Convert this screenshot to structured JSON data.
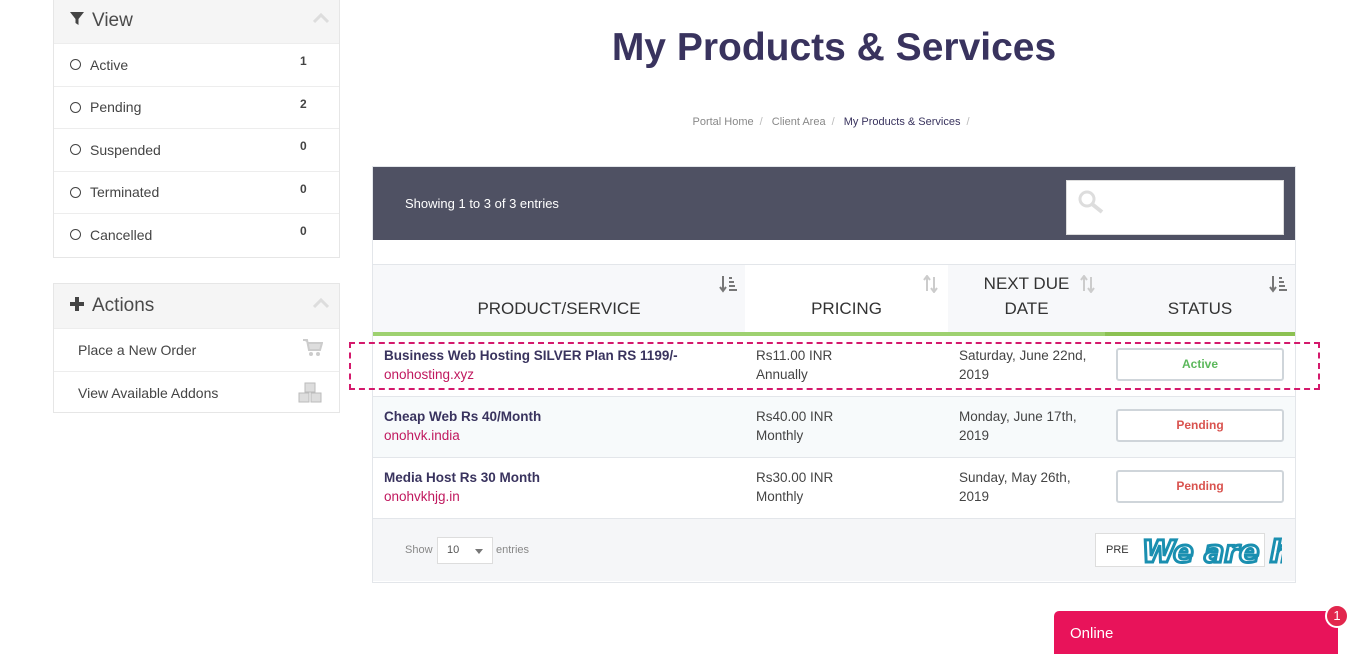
{
  "sidebar": {
    "view": {
      "title": "View",
      "items": [
        {
          "label": "Active",
          "count": "1"
        },
        {
          "label": "Pending",
          "count": "2"
        },
        {
          "label": "Suspended",
          "count": "0"
        },
        {
          "label": "Terminated",
          "count": "0"
        },
        {
          "label": "Cancelled",
          "count": "0"
        }
      ]
    },
    "actions": {
      "title": "Actions",
      "items": [
        {
          "label": "Place a New Order",
          "icon": "cart-icon"
        },
        {
          "label": "View Available Addons",
          "icon": "cubes-icon"
        }
      ]
    }
  },
  "page": {
    "title": "My Products & Services",
    "breadcrumb": [
      "Portal Home",
      "Client Area",
      "My Products & Services"
    ]
  },
  "table": {
    "showing": "Showing 1 to 3 of 3 entries",
    "headers": [
      "PRODUCT/SERVICE",
      "PRICING",
      "NEXT DUE DATE",
      "STATUS"
    ],
    "rows": [
      {
        "product": "Business Web Hosting SILVER Plan RS 1199/-",
        "domain": "onohosting.xyz",
        "price": "Rs11.00 INR",
        "cycle": "Annually",
        "due_line1": "Saturday, June 22nd,",
        "due_line2": "2019",
        "status": "Active"
      },
      {
        "product": "Cheap Web Rs 40/Month",
        "domain": "onohvk.india",
        "price": "Rs40.00 INR",
        "cycle": "Monthly",
        "due_line1": "Monday, June 17th,",
        "due_line2": "2019",
        "status": "Pending"
      },
      {
        "product": "Media Host Rs 30 Month",
        "domain": "onohvkhjg.in",
        "price": "Rs30.00 INR",
        "cycle": "Monthly",
        "due_line1": "Sunday, May 26th,",
        "due_line2": "2019",
        "status": "Pending"
      }
    ],
    "footer": {
      "show_label": "Show",
      "length_value": "10",
      "entries_label": "entries",
      "pager_label": "PRE"
    }
  },
  "chat": {
    "status_label": "Online",
    "badge_count": "1",
    "banner_text": "We are here!"
  },
  "colors": {
    "accent": "#39335e",
    "header_bar": "#4f5163",
    "sort_border": "#9ed170",
    "domain": "#c0185e",
    "chat": "#e8135a"
  }
}
